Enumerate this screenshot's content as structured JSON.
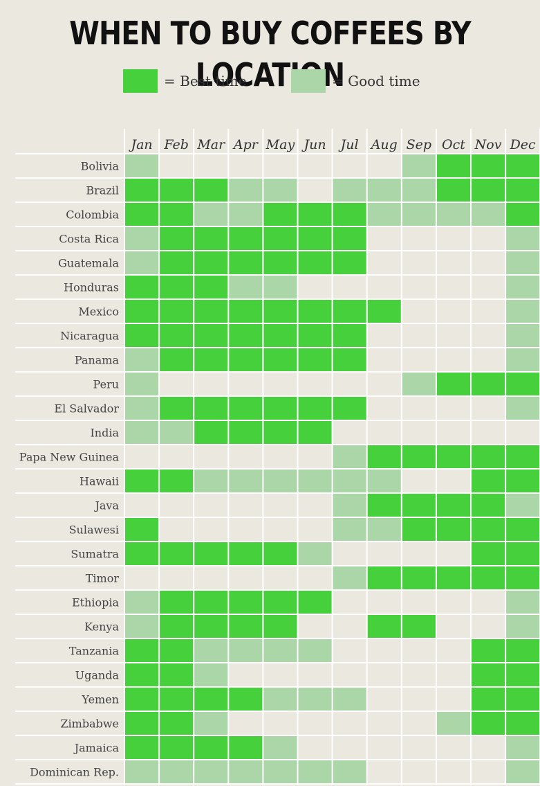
{
  "title": "WHEN TO BUY COFFEES BY LOCATION",
  "legend": {
    "best_label": "= Best time",
    "good_label": "= Good time"
  },
  "colors": {
    "best": "#46d13c",
    "good": "#abd6a8",
    "empty": "#ebe8df",
    "gridline": "#ffffff"
  },
  "chart_data": {
    "type": "heatmap",
    "title": "WHEN TO BUY COFFEES BY LOCATION",
    "value_key": {
      "2": "= Best time",
      "1": "= Good time",
      "0": ""
    },
    "months": [
      "Jan",
      "Feb",
      "Mar",
      "Apr",
      "May",
      "Jun",
      "Jul",
      "Aug",
      "Sep",
      "Oct",
      "Nov",
      "Dec"
    ],
    "rows": [
      {
        "country": "Bolivia",
        "values": [
          1,
          0,
          0,
          0,
          0,
          0,
          0,
          0,
          1,
          2,
          2,
          2
        ]
      },
      {
        "country": "Brazil",
        "values": [
          2,
          2,
          2,
          1,
          1,
          0,
          1,
          1,
          1,
          2,
          2,
          2
        ]
      },
      {
        "country": "Colombia",
        "values": [
          2,
          2,
          1,
          1,
          2,
          2,
          2,
          1,
          1,
          1,
          1,
          2
        ]
      },
      {
        "country": "Costa Rica",
        "values": [
          1,
          2,
          2,
          2,
          2,
          2,
          2,
          0,
          0,
          0,
          0,
          1
        ]
      },
      {
        "country": "Guatemala",
        "values": [
          1,
          2,
          2,
          2,
          2,
          2,
          2,
          0,
          0,
          0,
          0,
          1
        ]
      },
      {
        "country": "Honduras",
        "values": [
          2,
          2,
          2,
          1,
          1,
          0,
          0,
          0,
          0,
          0,
          0,
          1
        ]
      },
      {
        "country": "Mexico",
        "values": [
          2,
          2,
          2,
          2,
          2,
          2,
          2,
          2,
          0,
          0,
          0,
          1
        ]
      },
      {
        "country": "Nicaragua",
        "values": [
          2,
          2,
          2,
          2,
          2,
          2,
          2,
          0,
          0,
          0,
          0,
          1
        ]
      },
      {
        "country": "Panama",
        "values": [
          1,
          2,
          2,
          2,
          2,
          2,
          2,
          0,
          0,
          0,
          0,
          1
        ]
      },
      {
        "country": "Peru",
        "values": [
          1,
          0,
          0,
          0,
          0,
          0,
          0,
          0,
          1,
          2,
          2,
          2
        ]
      },
      {
        "country": "El Salvador",
        "values": [
          1,
          2,
          2,
          2,
          2,
          2,
          2,
          0,
          0,
          0,
          0,
          1
        ]
      },
      {
        "country": "India",
        "values": [
          1,
          1,
          2,
          2,
          2,
          2,
          0,
          0,
          0,
          0,
          0,
          0
        ]
      },
      {
        "country": "Papa New Guinea",
        "values": [
          0,
          0,
          0,
          0,
          0,
          0,
          1,
          2,
          2,
          2,
          2,
          2
        ]
      },
      {
        "country": "Hawaii",
        "values": [
          2,
          2,
          1,
          1,
          1,
          1,
          1,
          1,
          0,
          0,
          2,
          2
        ]
      },
      {
        "country": "Java",
        "values": [
          0,
          0,
          0,
          0,
          0,
          0,
          1,
          2,
          2,
          2,
          2,
          1
        ]
      },
      {
        "country": "Sulawesi",
        "values": [
          2,
          0,
          0,
          0,
          0,
          0,
          1,
          1,
          2,
          2,
          2,
          2
        ]
      },
      {
        "country": "Sumatra",
        "values": [
          2,
          2,
          2,
          2,
          2,
          1,
          0,
          0,
          0,
          0,
          2,
          2
        ]
      },
      {
        "country": "Timor",
        "values": [
          0,
          0,
          0,
          0,
          0,
          0,
          1,
          2,
          2,
          2,
          2,
          2
        ]
      },
      {
        "country": "Ethiopia",
        "values": [
          1,
          2,
          2,
          2,
          2,
          2,
          0,
          0,
          0,
          0,
          0,
          1
        ]
      },
      {
        "country": "Kenya",
        "values": [
          1,
          2,
          2,
          2,
          2,
          0,
          0,
          2,
          2,
          0,
          0,
          1
        ]
      },
      {
        "country": "Tanzania",
        "values": [
          2,
          2,
          1,
          1,
          1,
          1,
          0,
          0,
          0,
          0,
          2,
          2
        ]
      },
      {
        "country": "Uganda",
        "values": [
          2,
          2,
          1,
          0,
          0,
          0,
          0,
          0,
          0,
          0,
          2,
          2
        ]
      },
      {
        "country": "Yemen",
        "values": [
          2,
          2,
          2,
          2,
          1,
          1,
          1,
          0,
          0,
          0,
          2,
          2
        ]
      },
      {
        "country": "Zimbabwe",
        "values": [
          2,
          2,
          1,
          0,
          0,
          0,
          0,
          0,
          0,
          1,
          2,
          2
        ]
      },
      {
        "country": "Jamaica",
        "values": [
          2,
          2,
          2,
          2,
          1,
          0,
          0,
          0,
          0,
          0,
          0,
          1
        ]
      },
      {
        "country": "Dominican Rep.",
        "values": [
          1,
          1,
          1,
          1,
          1,
          1,
          1,
          0,
          0,
          0,
          0,
          1
        ]
      }
    ]
  }
}
